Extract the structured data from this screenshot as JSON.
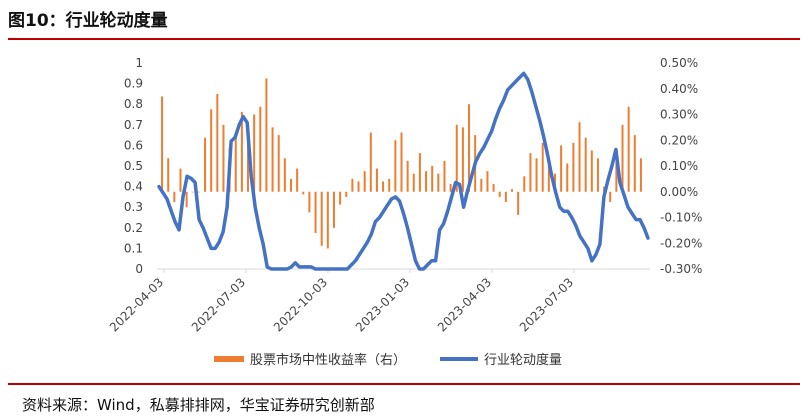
{
  "figure": {
    "title": "图10：行业轮动度量",
    "source": "资料来源：Wind，私募排排网，华宝证券研究创新部"
  },
  "colors": {
    "accent_rule": "#c00000",
    "bar_series": "#ed7d31",
    "line_series": "#4472c4"
  },
  "chart_data": {
    "type": "bar+line",
    "x_ticks": [
      "2022-04-03",
      "2022-07-03",
      "2022-10-03",
      "2023-01-03",
      "2023-04-03",
      "2023-07-03"
    ],
    "y_left": {
      "ylim": [
        0,
        1
      ],
      "ticks": [
        "0",
        "0.1",
        "0.2",
        "0.3",
        "0.4",
        "0.5",
        "0.6",
        "0.7",
        "0.8",
        "0.9",
        "1"
      ]
    },
    "y_right": {
      "ylim": [
        -0.003,
        0.005
      ],
      "ticks": [
        "-0.30%",
        "-0.20%",
        "-0.10%",
        "0.00%",
        "0.10%",
        "0.20%",
        "0.30%",
        "0.40%",
        "0.50%"
      ]
    },
    "series": [
      {
        "name": "股票市场中性收益率（右）",
        "type": "bar",
        "axis": "right",
        "values": [
          0.0037,
          0.0013,
          -0.0004,
          0.0009,
          -0.0006,
          0.0,
          0.0,
          0.0021,
          0.0032,
          0.0038,
          0.0026,
          0.0017,
          0.0023,
          0.0031,
          0.0022,
          0.003,
          0.0033,
          0.0044,
          0.0025,
          0.0022,
          0.0013,
          0.0005,
          0.0009,
          -0.0001,
          -0.0008,
          -0.0016,
          -0.0021,
          -0.0022,
          -0.0014,
          -0.0005,
          -0.0002,
          0.0005,
          0.0004,
          0.0008,
          0.0023,
          0.0009,
          0.0004,
          0.0005,
          0.002,
          0.0023,
          0.0012,
          0.0007,
          0.0015,
          0.0008,
          0.001,
          0.0007,
          0.0012,
          0.0003,
          0.0026,
          0.0025,
          0.0034,
          0.0022,
          0.0005,
          0.0008,
          0.0003,
          -0.0002,
          -0.0004,
          0.0001,
          -0.0009,
          0.0006,
          0.0015,
          0.0013,
          0.0019,
          0.0011,
          0.0007,
          0.0018,
          0.0011,
          0.0019,
          0.0027,
          0.0021,
          0.0016,
          0.0013,
          0.0002,
          -0.0004,
          0.0012,
          0.0026,
          0.0033,
          0.0022,
          0.0013
        ]
      },
      {
        "name": "行业轮动度量",
        "type": "line",
        "axis": "left",
        "points": [
          [
            0,
            0.4
          ],
          [
            2,
            0.34
          ],
          [
            4,
            0.23
          ],
          [
            5,
            0.19
          ],
          [
            6,
            0.35
          ],
          [
            7,
            0.45
          ],
          [
            8,
            0.44
          ],
          [
            9,
            0.42
          ],
          [
            10,
            0.24
          ],
          [
            11,
            0.2
          ],
          [
            12,
            0.15
          ],
          [
            13,
            0.1
          ],
          [
            14,
            0.1
          ],
          [
            15,
            0.13
          ],
          [
            16,
            0.18
          ],
          [
            17,
            0.3
          ],
          [
            18,
            0.62
          ],
          [
            19,
            0.64
          ],
          [
            20,
            0.7
          ],
          [
            21,
            0.74
          ],
          [
            22,
            0.71
          ],
          [
            23,
            0.45
          ],
          [
            24,
            0.3
          ],
          [
            25,
            0.2
          ],
          [
            26,
            0.12
          ],
          [
            27,
            0.01
          ],
          [
            28,
            0.0
          ],
          [
            30,
            0.0
          ],
          [
            32,
            0.0
          ],
          [
            33,
            0.01
          ],
          [
            34,
            0.03
          ],
          [
            35,
            0.01
          ],
          [
            36,
            0.01
          ],
          [
            37,
            0.01
          ],
          [
            38,
            0.01
          ],
          [
            39,
            0.0
          ],
          [
            40,
            0.0
          ],
          [
            42,
            0.0
          ],
          [
            43,
            0.0
          ],
          [
            45,
            0.0
          ],
          [
            46,
            0.0
          ],
          [
            47,
            0.0
          ],
          [
            48,
            0.02
          ],
          [
            49,
            0.04
          ],
          [
            50,
            0.07
          ],
          [
            51,
            0.1
          ],
          [
            52,
            0.13
          ],
          [
            53,
            0.17
          ],
          [
            54,
            0.23
          ],
          [
            55,
            0.25
          ],
          [
            56,
            0.28
          ],
          [
            57,
            0.31
          ],
          [
            58,
            0.34
          ],
          [
            59,
            0.35
          ],
          [
            60,
            0.33
          ],
          [
            61,
            0.27
          ],
          [
            62,
            0.2
          ],
          [
            63,
            0.12
          ],
          [
            64,
            0.04
          ],
          [
            65,
            0.0
          ],
          [
            66,
            0.0
          ],
          [
            67,
            0.02
          ],
          [
            68,
            0.04
          ],
          [
            69,
            0.04
          ],
          [
            70,
            0.19
          ],
          [
            71,
            0.22
          ],
          [
            72,
            0.28
          ],
          [
            73,
            0.35
          ],
          [
            74,
            0.42
          ],
          [
            75,
            0.41
          ],
          [
            76,
            0.3
          ],
          [
            77,
            0.38
          ],
          [
            78,
            0.45
          ],
          [
            79,
            0.52
          ],
          [
            80,
            0.56
          ],
          [
            81,
            0.59
          ],
          [
            82,
            0.63
          ],
          [
            83,
            0.67
          ],
          [
            84,
            0.73
          ],
          [
            85,
            0.78
          ],
          [
            86,
            0.82
          ],
          [
            87,
            0.87
          ],
          [
            88,
            0.89
          ],
          [
            89,
            0.91
          ],
          [
            90,
            0.93
          ],
          [
            91,
            0.95
          ],
          [
            92,
            0.92
          ],
          [
            93,
            0.86
          ],
          [
            94,
            0.79
          ],
          [
            95,
            0.72
          ],
          [
            96,
            0.64
          ],
          [
            97,
            0.55
          ],
          [
            98,
            0.45
          ],
          [
            99,
            0.37
          ],
          [
            100,
            0.3
          ],
          [
            101,
            0.28
          ],
          [
            102,
            0.28
          ],
          [
            103,
            0.25
          ],
          [
            104,
            0.21
          ],
          [
            105,
            0.16
          ],
          [
            106,
            0.13
          ],
          [
            107,
            0.1
          ],
          [
            108,
            0.04
          ],
          [
            109,
            0.07
          ],
          [
            110,
            0.12
          ],
          [
            111,
            0.35
          ],
          [
            112,
            0.43
          ],
          [
            113,
            0.5
          ],
          [
            114,
            0.58
          ],
          [
            115,
            0.42
          ],
          [
            116,
            0.36
          ],
          [
            117,
            0.3
          ],
          [
            118,
            0.27
          ],
          [
            119,
            0.24
          ],
          [
            120,
            0.24
          ],
          [
            121,
            0.2
          ],
          [
            122,
            0.15
          ]
        ]
      }
    ],
    "legend": "bottom",
    "grid": false
  }
}
